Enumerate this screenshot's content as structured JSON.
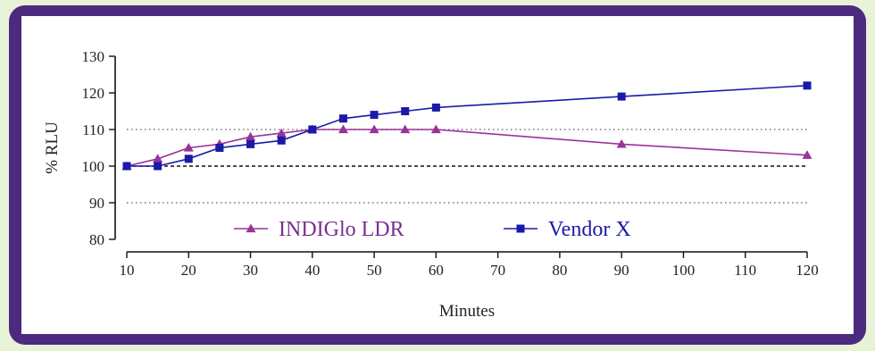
{
  "chart_data": {
    "type": "line",
    "title": "",
    "xlabel": "Minutes",
    "ylabel": "% RLU",
    "x_ticks": [
      10,
      20,
      30,
      40,
      50,
      60,
      70,
      80,
      90,
      100,
      110,
      120
    ],
    "y_ticks": [
      80,
      90,
      100,
      110,
      120,
      130
    ],
    "xlim": [
      10,
      120
    ],
    "ylim": [
      80,
      130
    ],
    "reference_lines": [
      {
        "y": 90,
        "style": "dotted"
      },
      {
        "y": 100,
        "style": "dashed"
      },
      {
        "y": 110,
        "style": "dotted"
      }
    ],
    "series": [
      {
        "name": "INDIGlo LDR",
        "marker": "triangle",
        "color": "#993399",
        "text_color": "#7a2f8f",
        "x": [
          10,
          15,
          20,
          25,
          30,
          35,
          40,
          45,
          50,
          55,
          60,
          90,
          120
        ],
        "y": [
          100,
          102,
          105,
          106,
          108,
          109,
          110,
          110,
          110,
          110,
          110,
          106,
          103
        ]
      },
      {
        "name": "Vendor X",
        "marker": "square",
        "color": "#1a1aa8",
        "text_color": "#1a1aa8",
        "x": [
          10,
          15,
          20,
          25,
          30,
          35,
          40,
          45,
          50,
          55,
          60,
          90,
          120
        ],
        "y": [
          100,
          100,
          102,
          105,
          106,
          107,
          110,
          113,
          114,
          115,
          116,
          119,
          122
        ]
      }
    ],
    "legend": {
      "placement": "bottom-left-inside"
    }
  }
}
